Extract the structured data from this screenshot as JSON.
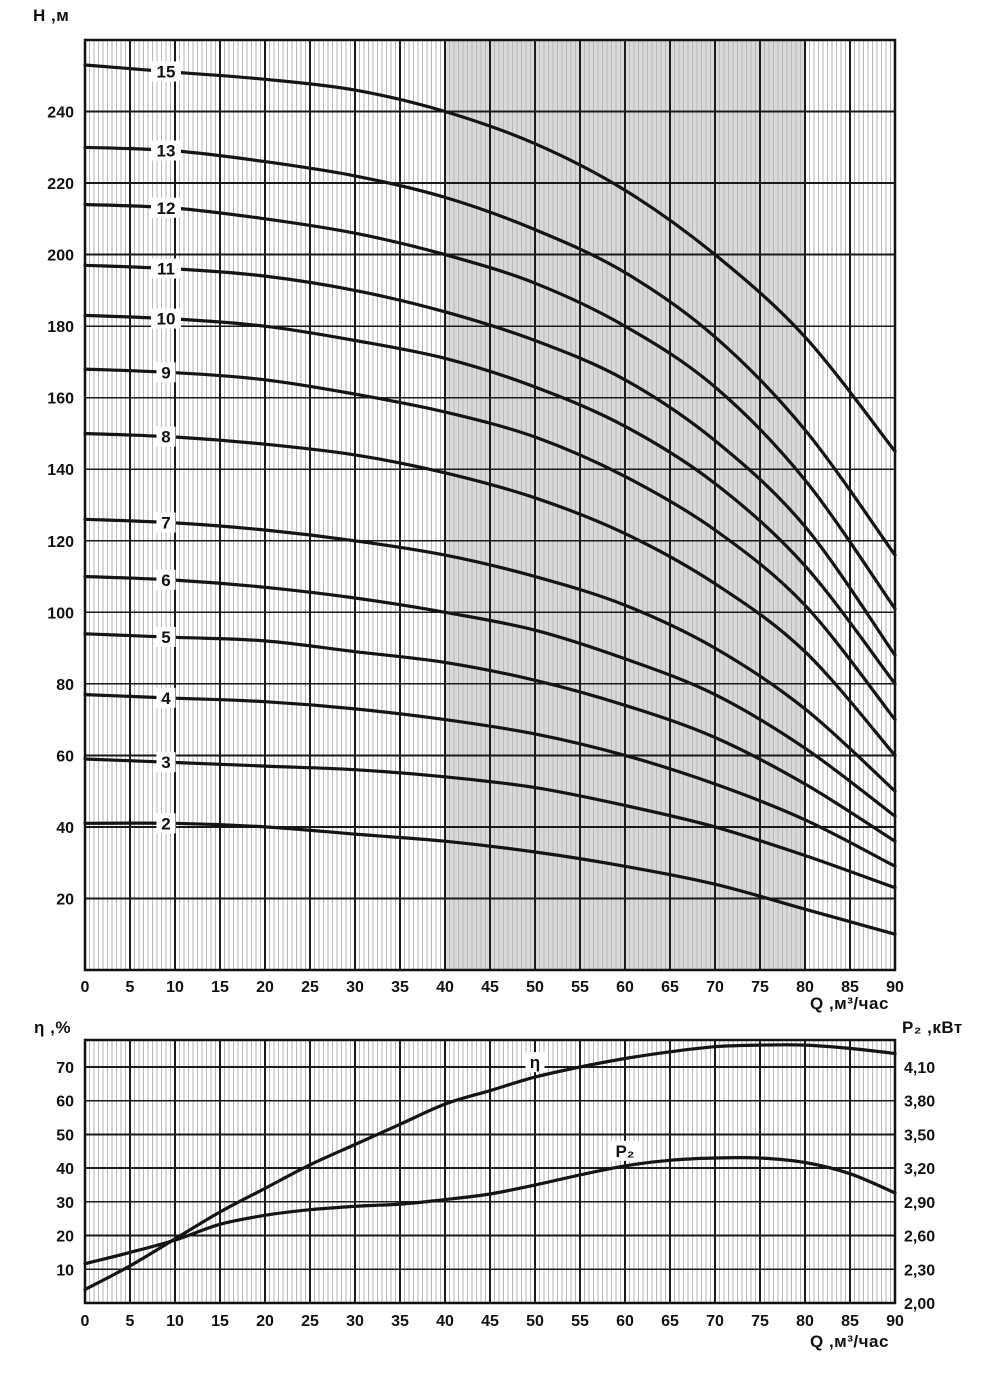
{
  "labels": {
    "head_y": "H ,м",
    "flow_x": "Q ,м³/час",
    "eff_y": "η ,%",
    "power_y": "P₂ ,кВт"
  },
  "chart_data": [
    {
      "type": "line",
      "title": "",
      "xlabel": "Q ,м³/час",
      "ylabel": "H ,м",
      "xlim": [
        0,
        90
      ],
      "ylim": [
        0,
        260
      ],
      "x_ticks": [
        0,
        5,
        10,
        15,
        20,
        25,
        30,
        35,
        40,
        45,
        50,
        55,
        60,
        65,
        70,
        75,
        80,
        85,
        90
      ],
      "y_ticks": [
        20,
        40,
        60,
        80,
        100,
        120,
        140,
        160,
        180,
        200,
        220,
        240
      ],
      "x_minor_step": 0.5,
      "grid": "vertical-minor-stripes, major grid on",
      "legend": "curve labels inline (number of pump stages)",
      "highlight_band_q": [
        40,
        80
      ],
      "band_color": "#d9d9d9",
      "curve_color": "#141414",
      "x": [
        0,
        10,
        20,
        30,
        40,
        50,
        60,
        70,
        80,
        90
      ],
      "series": [
        {
          "name": "15",
          "label_q": 9,
          "values": [
            253,
            251,
            249,
            246,
            240,
            231,
            218,
            200,
            177,
            145
          ]
        },
        {
          "name": "13",
          "label_q": 9,
          "values": [
            230,
            229,
            226,
            222,
            216,
            207,
            195,
            177,
            151,
            116
          ]
        },
        {
          "name": "12",
          "label_q": 9,
          "values": [
            214,
            213,
            210,
            206,
            200,
            192,
            180,
            163,
            137,
            101
          ]
        },
        {
          "name": "11",
          "label_q": 9,
          "values": [
            197,
            196,
            194,
            190,
            184,
            176,
            165,
            148,
            124,
            88
          ]
        },
        {
          "name": "10",
          "label_q": 9,
          "values": [
            183,
            182,
            180,
            176,
            171,
            163,
            152,
            136,
            113,
            80
          ]
        },
        {
          "name": "9",
          "label_q": 9,
          "values": [
            168,
            167,
            165,
            161,
            156,
            149,
            138,
            123,
            102,
            70
          ]
        },
        {
          "name": "8",
          "label_q": 9,
          "values": [
            150,
            149,
            147,
            144,
            139,
            132,
            122,
            108,
            89,
            60
          ]
        },
        {
          "name": "7",
          "label_q": 9,
          "values": [
            126,
            125,
            123,
            120,
            116,
            110,
            102,
            90,
            73,
            50
          ]
        },
        {
          "name": "6",
          "label_q": 9,
          "values": [
            110,
            109,
            107,
            104,
            100,
            95,
            87,
            77,
            62,
            43
          ]
        },
        {
          "name": "5",
          "label_q": 9,
          "values": [
            94,
            93,
            92,
            89,
            86,
            81,
            74,
            65,
            52,
            36
          ]
        },
        {
          "name": "4",
          "label_q": 9,
          "values": [
            77,
            76,
            75,
            73,
            70,
            66,
            60,
            52,
            42,
            29
          ]
        },
        {
          "name": "3",
          "label_q": 9,
          "values": [
            59,
            58,
            57,
            56,
            54,
            51,
            46,
            40,
            32,
            23
          ]
        },
        {
          "name": "2",
          "label_q": 9,
          "values": [
            41,
            41,
            40,
            38,
            36,
            33,
            29,
            24,
            17,
            10
          ]
        }
      ]
    },
    {
      "type": "line",
      "title": "",
      "xlabel": "Q ,м³/час",
      "ylabel_left": "η ,%",
      "ylabel_right": "P₂ ,кВт",
      "xlim": [
        0,
        90
      ],
      "ylim_left": [
        0,
        78
      ],
      "x_ticks": [
        0,
        5,
        10,
        15,
        20,
        25,
        30,
        35,
        40,
        45,
        50,
        55,
        60,
        65,
        70,
        75,
        80,
        85,
        90
      ],
      "left_ticks": [
        10,
        20,
        30,
        40,
        50,
        60,
        70
      ],
      "right_ticks": [
        "2,00",
        "2,30",
        "2,60",
        "2,90",
        "3,20",
        "3,50",
        "3,80",
        "4,10"
      ],
      "right_tick_values": [
        2.0,
        2.3,
        2.6,
        2.9,
        3.2,
        3.5,
        3.8,
        4.1
      ],
      "p_axis_map": {
        "p_at_eta0": 2.0,
        "p_per_eta": 0.03
      },
      "x_minor_step": 0.5,
      "grid": "vertical-minor-stripes, major grid on",
      "curve_color": "#141414",
      "x": [
        0,
        5,
        10,
        15,
        20,
        25,
        30,
        35,
        40,
        45,
        50,
        55,
        60,
        65,
        70,
        75,
        80,
        85,
        90
      ],
      "series": [
        {
          "name": "η",
          "axis": "left",
          "label_q": 50,
          "values": [
            4,
            11,
            19,
            27,
            34,
            41,
            47,
            53,
            59,
            63,
            67,
            70,
            72.5,
            74.5,
            76,
            76.5,
            76.5,
            75.5,
            74
          ]
        },
        {
          "name": "P₂",
          "axis": "right",
          "label_q": 60,
          "values": [
            2.35,
            2.45,
            2.56,
            2.7,
            2.78,
            2.83,
            2.86,
            2.88,
            2.92,
            2.97,
            3.05,
            3.14,
            3.22,
            3.27,
            3.29,
            3.29,
            3.25,
            3.15,
            2.98
          ]
        }
      ]
    }
  ]
}
